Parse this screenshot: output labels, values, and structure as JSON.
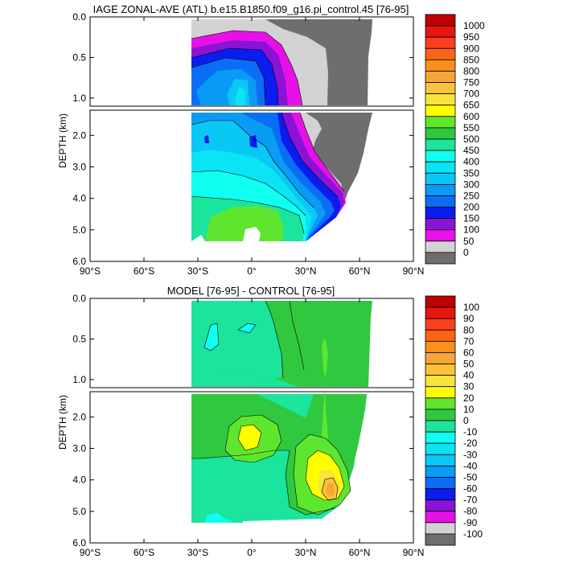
{
  "chart_data": [
    {
      "type": "contour",
      "title": "IAGE ZONAL-AVE (ATL) b.e15.B1850.f09_g16.pi_control.45 [76-95]",
      "ylabel": "DEPTH (km)",
      "x_ticks": [
        "90°S",
        "60°S",
        "30°S",
        "0°",
        "30°N",
        "60°N",
        "90°N"
      ],
      "x_tick_values": [
        -90,
        -60,
        -30,
        0,
        30,
        60,
        90
      ],
      "xlim": [
        -90,
        90
      ],
      "upper_panel": {
        "ylim": [
          0,
          1.1
        ],
        "y_ticks": [
          "0.0",
          "0.5",
          "1.0"
        ],
        "y_tick_values": [
          0,
          0.5,
          1.0
        ]
      },
      "lower_panel": {
        "ylim": [
          1.2,
          6.0
        ],
        "y_ticks": [
          "2.0",
          "3.0",
          "4.0",
          "5.0",
          "6.0"
        ],
        "y_tick_values": [
          2,
          3,
          4,
          5,
          6
        ]
      },
      "colorbar": {
        "labels": [
          "1000",
          "950",
          "900",
          "850",
          "800",
          "750",
          "700",
          "650",
          "600",
          "550",
          "500",
          "450",
          "400",
          "350",
          "300",
          "250",
          "200",
          "150",
          "100",
          "50",
          "0"
        ],
        "colors": [
          "#c00000",
          "#e8160c",
          "#fb3f1e",
          "#fa6513",
          "#fb8f1e",
          "#f5a637",
          "#fbc23a",
          "#f8e43b",
          "#fefe00",
          "#5ee62e",
          "#30c83f",
          "#1be49c",
          "#0ffff0",
          "#0ae4f4",
          "#0ac8f5",
          "#0a9bf5",
          "#0a6ef5",
          "#0a1cf0",
          "#8a13d6",
          "#e711e7",
          "#d2d2d2",
          "#6e6e6e"
        ]
      },
      "fields": {
        "upper": [
          {
            "lat": -35,
            "levels": [
              100,
              150,
              250,
              300,
              350
            ]
          },
          {
            "lat": -10,
            "levels": [
              150,
              200,
              300,
              400,
              450
            ]
          },
          {
            "lat": 10,
            "levels": [
              100,
              200,
              300,
              400
            ]
          },
          {
            "lat": 25,
            "levels": [
              50,
              100,
              150,
              250
            ]
          },
          {
            "lat": 40,
            "levels": [
              0,
              50,
              100
            ]
          },
          {
            "lat": 60,
            "levels": [
              0,
              50
            ]
          }
        ],
        "lower": [
          {
            "lat": -35,
            "levels": [
              350,
              400,
              450,
              500
            ]
          },
          {
            "lat": 0,
            "levels": [
              350,
              400,
              450,
              500,
              550
            ]
          },
          {
            "lat": 30,
            "levels": [
              250,
              300,
              400,
              450
            ]
          },
          {
            "lat": 45,
            "levels": [
              100,
              150,
              200,
              300
            ]
          },
          {
            "lat": 55,
            "levels": [
              0,
              50,
              100,
              200
            ]
          }
        ]
      }
    },
    {
      "type": "contour",
      "title": "MODEL [76-95] - CONTROL [76-95]",
      "ylabel": "DEPTH (km)",
      "x_ticks": [
        "90°S",
        "60°S",
        "30°S",
        "0°",
        "30°N",
        "60°N",
        "90°N"
      ],
      "x_tick_values": [
        -90,
        -60,
        -30,
        0,
        30,
        60,
        90
      ],
      "xlim": [
        -90,
        90
      ],
      "upper_panel": {
        "ylim": [
          0,
          1.1
        ],
        "y_ticks": [
          "0.0",
          "0.5",
          "1.0"
        ],
        "y_tick_values": [
          0,
          0.5,
          1.0
        ]
      },
      "lower_panel": {
        "ylim": [
          1.2,
          6.0
        ],
        "y_ticks": [
          "2.0",
          "3.0",
          "4.0",
          "5.0",
          "6.0"
        ],
        "y_tick_values": [
          2,
          3,
          4,
          5,
          6
        ]
      },
      "colorbar": {
        "labels": [
          "100",
          "90",
          "80",
          "70",
          "60",
          "50",
          "40",
          "30",
          "20",
          "10",
          "0",
          "-10",
          "-20",
          "-30",
          "-40",
          "-50",
          "-60",
          "-70",
          "-80",
          "-90",
          "-100"
        ],
        "colors": [
          "#c00000",
          "#e8160c",
          "#fb3f1e",
          "#fa6513",
          "#fb8f1e",
          "#f5a637",
          "#fbc23a",
          "#f8e43b",
          "#fefe00",
          "#5ee62e",
          "#30c83f",
          "#1be49c",
          "#0ffff0",
          "#0ae4f4",
          "#0ac8f5",
          "#0a9bf5",
          "#0a6ef5",
          "#0a1cf0",
          "#8a13d6",
          "#e711e7",
          "#d2d2d2",
          "#6e6e6e"
        ]
      },
      "features": [
        {
          "name": "positive anomaly",
          "lat": 0,
          "depth_km": 2.6,
          "value_range": [
            20,
            30
          ]
        },
        {
          "name": "positive anomaly",
          "lat": 45,
          "depth_km": 4.0,
          "value_range": [
            30,
            60
          ]
        }
      ]
    }
  ]
}
